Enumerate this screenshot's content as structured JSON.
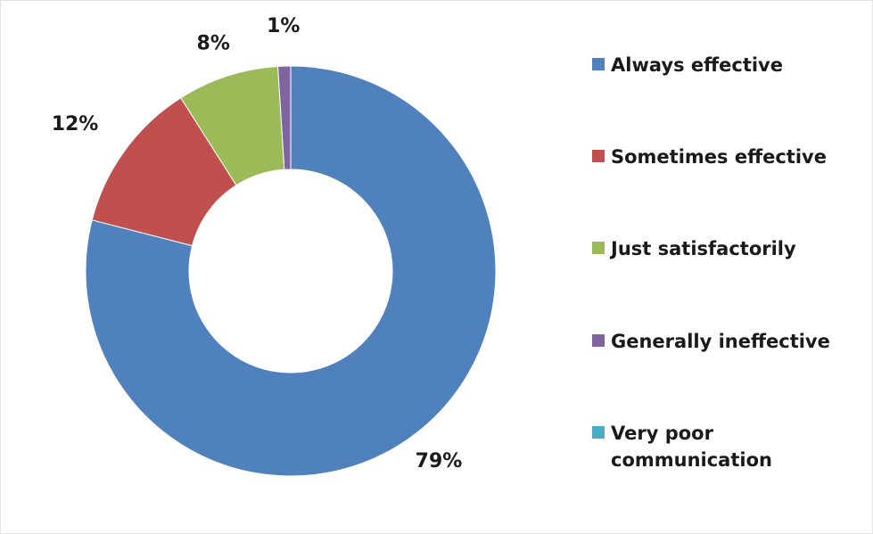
{
  "chart_data": {
    "type": "pie",
    "variant": "donut",
    "categories": [
      "Always effective",
      "Sometimes effective",
      "Just satisfactorily",
      "Generally ineffective",
      "Very poor communication"
    ],
    "values": [
      79,
      12,
      8,
      1,
      0
    ],
    "unit": "%",
    "data_labels": [
      "79%",
      "12%",
      "8%",
      "1%",
      ""
    ],
    "colors": [
      "#4f81bd",
      "#c0504d",
      "#9bbb59",
      "#8064a2",
      "#4bacc6"
    ],
    "legend_position": "right",
    "title": ""
  }
}
